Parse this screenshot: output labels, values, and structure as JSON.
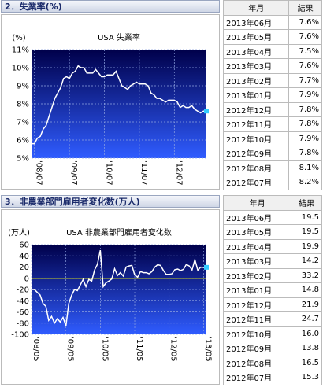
{
  "panels": [
    {
      "heading": "2．失業率(%)",
      "table": {
        "header": [
          "年月",
          "結果"
        ],
        "rows": [
          [
            "2013年06月",
            "7.6%"
          ],
          [
            "2013年05月",
            "7.6%"
          ],
          [
            "2013年04月",
            "7.5%"
          ],
          [
            "2013年03月",
            "7.6%"
          ],
          [
            "2013年02月",
            "7.7%"
          ],
          [
            "2013年01月",
            "7.9%"
          ],
          [
            "2012年12月",
            "7.8%"
          ],
          [
            "2012年11月",
            "7.8%"
          ],
          [
            "2012年10月",
            "7.9%"
          ],
          [
            "2012年09月",
            "7.8%"
          ],
          [
            "2012年08月",
            "8.1%"
          ],
          [
            "2012年07月",
            "8.2%"
          ]
        ]
      }
    },
    {
      "heading": "3．非農業部門雇用者変化数(万人)",
      "table": {
        "header": [
          "年月",
          "結果"
        ],
        "rows": [
          [
            "2013年06月",
            "19.5"
          ],
          [
            "2013年05月",
            "19.5"
          ],
          [
            "2013年04月",
            "19.9"
          ],
          [
            "2013年03月",
            "14.2"
          ],
          [
            "2013年02月",
            "33.2"
          ],
          [
            "2013年01月",
            "14.8"
          ],
          [
            "2012年12月",
            "21.9"
          ],
          [
            "2012年11月",
            "24.7"
          ],
          [
            "2012年10月",
            "16.0"
          ],
          [
            "2012年09月",
            "13.8"
          ],
          [
            "2012年08月",
            "16.5"
          ],
          [
            "2012年07月",
            "15.3"
          ]
        ]
      }
    }
  ],
  "chart_data": [
    {
      "type": "line",
      "title": "USA 失業率",
      "y_label": "(%)",
      "color": "#ffffff",
      "marker_color": "#33ccff",
      "grid": true,
      "categories": [
        null,
        "'08/07",
        null,
        null,
        null,
        null,
        null,
        null,
        null,
        null,
        null,
        null,
        null,
        "'09/07",
        null,
        null,
        null,
        null,
        null,
        null,
        null,
        null,
        null,
        null,
        null,
        "'10/07",
        null,
        null,
        null,
        null,
        null,
        null,
        null,
        null,
        null,
        null,
        null,
        "'11/07",
        null,
        null,
        null,
        null,
        null,
        null,
        null,
        null,
        null,
        null,
        null,
        "'12/07",
        null,
        null,
        null,
        null,
        null,
        null,
        null,
        null,
        null,
        null,
        null
      ],
      "values": [
        5.8,
        5.8,
        6.1,
        6.2,
        6.6,
        6.8,
        7.3,
        7.8,
        8.3,
        8.6,
        8.9,
        9.4,
        9.5,
        9.4,
        9.7,
        9.8,
        10.1,
        10.0,
        10.0,
        9.7,
        9.7,
        9.7,
        9.9,
        9.7,
        9.5,
        9.5,
        9.6,
        9.6,
        9.6,
        9.8,
        9.4,
        9.0,
        8.9,
        8.8,
        9.0,
        9.1,
        9.2,
        9.1,
        9.1,
        9.1,
        9.0,
        8.6,
        8.5,
        8.3,
        8.3,
        8.2,
        8.1,
        8.2,
        8.2,
        8.2,
        8.1,
        7.8,
        7.9,
        7.8,
        7.8,
        7.9,
        7.7,
        7.6,
        7.5,
        7.6,
        7.6
      ],
      "ylim": [
        5,
        11
      ],
      "yticks": [
        {
          "value": 5,
          "label": "5%"
        },
        {
          "value": 6,
          "label": "6%"
        },
        {
          "value": 7,
          "label": "7%"
        },
        {
          "value": 8,
          "label": "8%"
        },
        {
          "value": 9,
          "label": "9%"
        },
        {
          "value": 10,
          "label": "10%"
        },
        {
          "value": 11,
          "label": "11%"
        }
      ]
    },
    {
      "type": "line",
      "title": "USA 非農業部門雇用者変化数",
      "y_label": "(万人)",
      "color": "#ffffff",
      "marker_color": "#33ccff",
      "grid": true,
      "zero_line_color": "#ffff00",
      "categories": [
        "'08/05",
        null,
        null,
        null,
        null,
        null,
        null,
        null,
        null,
        null,
        null,
        null,
        "'09/05",
        null,
        null,
        null,
        null,
        null,
        null,
        null,
        null,
        null,
        null,
        null,
        "'10/05",
        null,
        null,
        null,
        null,
        null,
        null,
        null,
        null,
        null,
        null,
        null,
        "'11/05",
        null,
        null,
        null,
        null,
        null,
        null,
        null,
        null,
        null,
        null,
        null,
        "'12/05",
        null,
        null,
        null,
        null,
        null,
        null,
        null,
        null,
        null,
        null,
        null,
        "'13/05",
        null
      ],
      "values": [
        -20,
        -20,
        -25,
        -30,
        -45,
        -50,
        -75,
        -68,
        -80,
        -72,
        -78,
        -70,
        -85,
        -45,
        -30,
        -20,
        -22,
        -12,
        -2,
        -15,
        -2,
        -5,
        15,
        25,
        50,
        -15,
        -8,
        -5,
        -1,
        17,
        5,
        10,
        4,
        20,
        22,
        23,
        6,
        2,
        12,
        10,
        10,
        8,
        12,
        20,
        24,
        23,
        14,
        7,
        7,
        8,
        15.3,
        16.5,
        13.8,
        16.0,
        24.7,
        21.9,
        14.8,
        33.2,
        14.2,
        19.9,
        19.5,
        19.5
      ],
      "ylim": [
        -100,
        60
      ],
      "yticks": [
        -100,
        -80,
        -60,
        -40,
        -20,
        0,
        20,
        40,
        60
      ]
    }
  ]
}
